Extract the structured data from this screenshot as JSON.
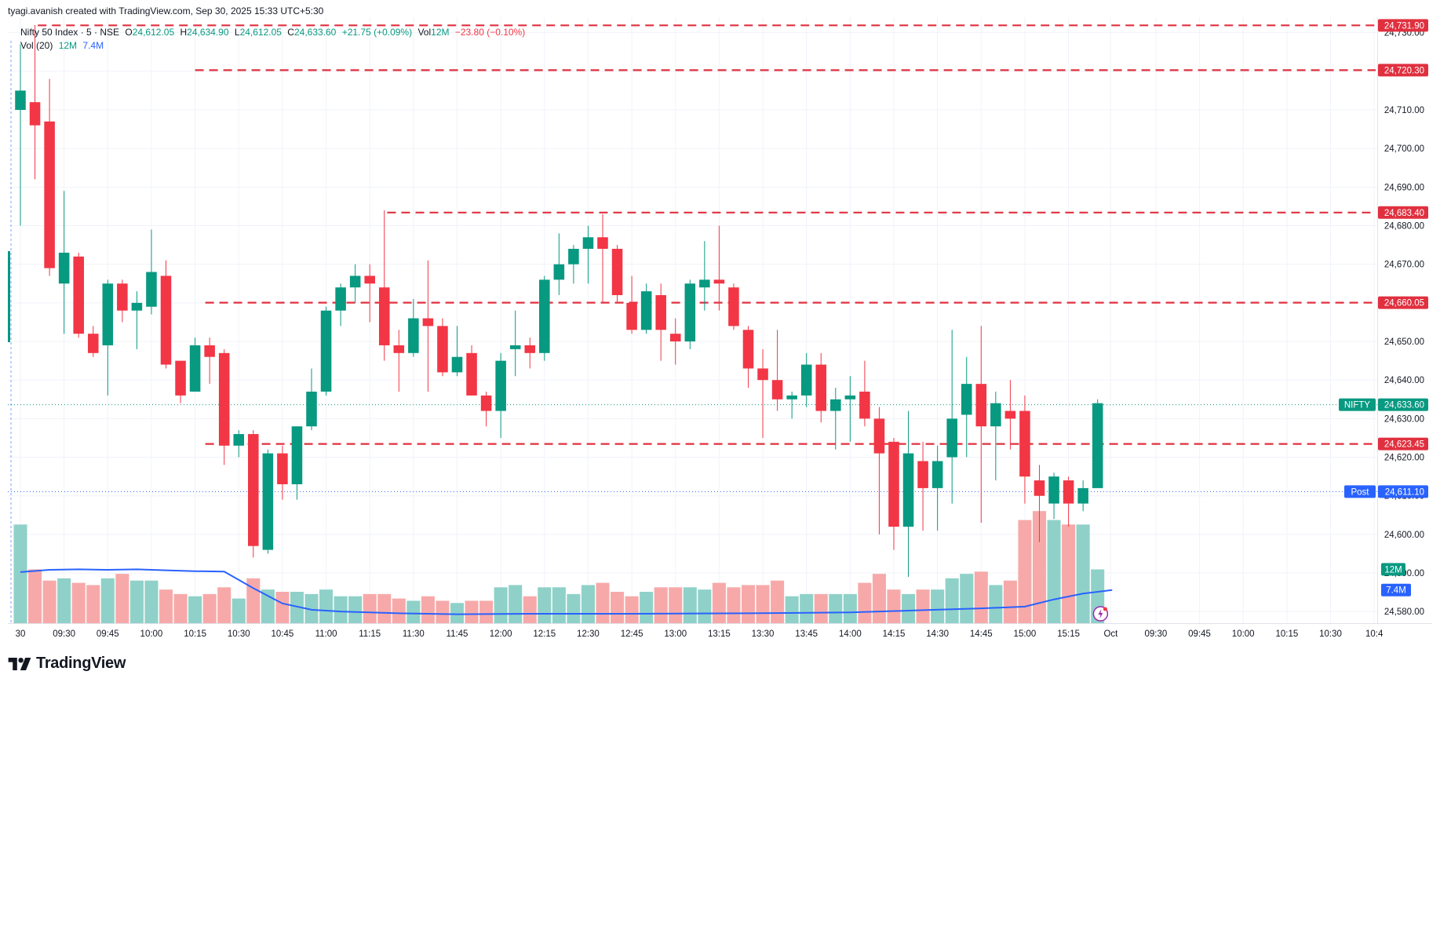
{
  "header": {
    "attribution": "tyagi.avanish created with TradingView.com, Sep 30, 2025 15:33 UTC+5:30"
  },
  "legend": {
    "symbol": "Nifty 50 Index · 5 · NSE",
    "open_key": "O",
    "open": "24,612.05",
    "high_key": "H",
    "high": "24,634.90",
    "low_key": "L",
    "low": "24,612.05",
    "close_key": "C",
    "close": "24,633.60",
    "change": "+21.75 (+0.09%)",
    "vol_key": "Vol",
    "vol": "12M",
    "vol_change": "−23.80 (−0.10%)",
    "vol_indicator": "Vol (20)",
    "vol_value": "12M",
    "vol_ma": "7.4M"
  },
  "logo": {
    "text": "TradingView"
  },
  "colors": {
    "up": "#089981",
    "down": "#f23645",
    "up_vol": "#8fd1c8",
    "down_vol": "#f7a9a9",
    "ma": "#2962ff",
    "level": "#e0303f",
    "grid": "#f0f3fa",
    "post": "#2962ff"
  },
  "chart_data": {
    "type": "candlestick",
    "title": "Nifty 50 Index · 5 · NSE",
    "price_axis": {
      "ylim": [
        24577,
        24734
      ],
      "ticks": [
        "24,580.00",
        "24,590.00",
        "24,600.00",
        "24,610.00",
        "24,620.00",
        "24,630.00",
        "24,640.00",
        "24,650.00",
        "24,660.00",
        "24,670.00",
        "24,680.00",
        "24,690.00",
        "24,700.00",
        "24,710.00",
        "24,720.00",
        "24,730.00"
      ],
      "tick_values": [
        24580,
        24590,
        24600,
        24610,
        24620,
        24630,
        24640,
        24650,
        24660,
        24670,
        24680,
        24690,
        24700,
        24710,
        24720,
        24730
      ]
    },
    "time_axis": {
      "labels": [
        "30",
        "09:30",
        "09:45",
        "10:00",
        "10:15",
        "10:30",
        "10:45",
        "11:00",
        "11:15",
        "11:30",
        "11:45",
        "12:00",
        "12:15",
        "12:30",
        "12:45",
        "13:00",
        "13:15",
        "13:30",
        "13:45",
        "14:00",
        "14:15",
        "14:30",
        "14:45",
        "15:00",
        "15:15",
        "Oct",
        "09:30",
        "09:45",
        "10:00",
        "10:15",
        "10:30",
        "10:4"
      ],
      "label_index": [
        0,
        3,
        6,
        9,
        12,
        15,
        18,
        21,
        24,
        27,
        30,
        33,
        36,
        39,
        42,
        45,
        48,
        51,
        54,
        57,
        60,
        63,
        66,
        69,
        72,
        74.9,
        78,
        81,
        84,
        87,
        90,
        93
      ]
    },
    "volume_axis": {
      "vmax": 28
    },
    "candles": [
      {
        "o": 24710,
        "h": 24727,
        "l": 24680,
        "c": 24715,
        "v": 22
      },
      {
        "o": 24712,
        "h": 24732,
        "l": 24692,
        "c": 24706,
        "v": 12
      },
      {
        "o": 24707,
        "h": 24718,
        "l": 24667,
        "c": 24669,
        "v": 9.5
      },
      {
        "o": 24665,
        "h": 24689,
        "l": 24652,
        "c": 24673,
        "v": 10
      },
      {
        "o": 24672,
        "h": 24673,
        "l": 24651,
        "c": 24652,
        "v": 9
      },
      {
        "o": 24652,
        "h": 24654,
        "l": 24646,
        "c": 24647,
        "v": 8.5
      },
      {
        "o": 24649,
        "h": 24666,
        "l": 24636,
        "c": 24665,
        "v": 10
      },
      {
        "o": 24665,
        "h": 24666,
        "l": 24655,
        "c": 24658,
        "v": 11
      },
      {
        "o": 24658,
        "h": 24663,
        "l": 24648,
        "c": 24660,
        "v": 9.5
      },
      {
        "o": 24659,
        "h": 24679,
        "l": 24657,
        "c": 24668,
        "v": 9.5
      },
      {
        "o": 24667,
        "h": 24671,
        "l": 24643,
        "c": 24644,
        "v": 7.5
      },
      {
        "o": 24645,
        "h": 24645,
        "l": 24634,
        "c": 24636,
        "v": 6.5
      },
      {
        "o": 24637,
        "h": 24651,
        "l": 24637,
        "c": 24649,
        "v": 6
      },
      {
        "o": 24649,
        "h": 24651,
        "l": 24639,
        "c": 24646,
        "v": 6.5
      },
      {
        "o": 24647,
        "h": 24648,
        "l": 24618,
        "c": 24623,
        "v": 8
      },
      {
        "o": 24623,
        "h": 24627,
        "l": 24620,
        "c": 24626,
        "v": 5.5
      },
      {
        "o": 24626,
        "h": 24627,
        "l": 24594,
        "c": 24597,
        "v": 10
      },
      {
        "o": 24596,
        "h": 24622,
        "l": 24595,
        "c": 24621,
        "v": 7.5
      },
      {
        "o": 24621,
        "h": 24623,
        "l": 24609,
        "c": 24613,
        "v": 7
      },
      {
        "o": 24613,
        "h": 24628,
        "l": 24609,
        "c": 24628,
        "v": 7
      },
      {
        "o": 24628,
        "h": 24643,
        "l": 24627,
        "c": 24637,
        "v": 6.5
      },
      {
        "o": 24637,
        "h": 24659,
        "l": 24636,
        "c": 24658,
        "v": 7.5
      },
      {
        "o": 24658,
        "h": 24665,
        "l": 24654,
        "c": 24664,
        "v": 6
      },
      {
        "o": 24664,
        "h": 24670,
        "l": 24660,
        "c": 24667,
        "v": 6
      },
      {
        "o": 24667,
        "h": 24670,
        "l": 24655,
        "c": 24665,
        "v": 6.5
      },
      {
        "o": 24664,
        "h": 24684,
        "l": 24645,
        "c": 24649,
        "v": 6.5
      },
      {
        "o": 24649,
        "h": 24653,
        "l": 24637,
        "c": 24647,
        "v": 5.5
      },
      {
        "o": 24647,
        "h": 24661,
        "l": 24646,
        "c": 24656,
        "v": 5
      },
      {
        "o": 24656,
        "h": 24671,
        "l": 24637,
        "c": 24654,
        "v": 6
      },
      {
        "o": 24654,
        "h": 24656,
        "l": 24641,
        "c": 24642,
        "v": 5
      },
      {
        "o": 24642,
        "h": 24654,
        "l": 24641,
        "c": 24646,
        "v": 4.5
      },
      {
        "o": 24647,
        "h": 24649,
        "l": 24636,
        "c": 24636,
        "v": 5
      },
      {
        "o": 24636,
        "h": 24637,
        "l": 24628,
        "c": 24632,
        "v": 5
      },
      {
        "o": 24632,
        "h": 24647,
        "l": 24625,
        "c": 24645,
        "v": 8
      },
      {
        "o": 24648,
        "h": 24658,
        "l": 24641,
        "c": 24649,
        "v": 8.5
      },
      {
        "o": 24649,
        "h": 24651,
        "l": 24643,
        "c": 24647,
        "v": 6
      },
      {
        "o": 24647,
        "h": 24667,
        "l": 24645,
        "c": 24666,
        "v": 8
      },
      {
        "o": 24666,
        "h": 24678,
        "l": 24662,
        "c": 24670,
        "v": 8
      },
      {
        "o": 24670,
        "h": 24675,
        "l": 24665,
        "c": 24674,
        "v": 6.5
      },
      {
        "o": 24674,
        "h": 24680,
        "l": 24665,
        "c": 24677,
        "v": 8.5
      },
      {
        "o": 24677,
        "h": 24683,
        "l": 24660,
        "c": 24674,
        "v": 9
      },
      {
        "o": 24674,
        "h": 24675,
        "l": 24660,
        "c": 24662,
        "v": 7
      },
      {
        "o": 24660,
        "h": 24667,
        "l": 24652,
        "c": 24653,
        "v": 6
      },
      {
        "o": 24653,
        "h": 24665,
        "l": 24652,
        "c": 24663,
        "v": 7
      },
      {
        "o": 24662,
        "h": 24665,
        "l": 24645,
        "c": 24653,
        "v": 8
      },
      {
        "o": 24652,
        "h": 24656,
        "l": 24644,
        "c": 24650,
        "v": 8
      },
      {
        "o": 24650,
        "h": 24666,
        "l": 24648,
        "c": 24665,
        "v": 8
      },
      {
        "o": 24664,
        "h": 24676,
        "l": 24658,
        "c": 24666,
        "v": 7.5
      },
      {
        "o": 24666,
        "h": 24680,
        "l": 24658,
        "c": 24665,
        "v": 9
      },
      {
        "o": 24664,
        "h": 24665,
        "l": 24653,
        "c": 24654,
        "v": 8
      },
      {
        "o": 24653,
        "h": 24654,
        "l": 24638,
        "c": 24643,
        "v": 8.5
      },
      {
        "o": 24643,
        "h": 24648,
        "l": 24625,
        "c": 24640,
        "v": 8.5
      },
      {
        "o": 24640,
        "h": 24653,
        "l": 24632,
        "c": 24635,
        "v": 9.5
      },
      {
        "o": 24635,
        "h": 24637,
        "l": 24630,
        "c": 24636,
        "v": 6
      },
      {
        "o": 24636,
        "h": 24647,
        "l": 24633,
        "c": 24644,
        "v": 6.5
      },
      {
        "o": 24644,
        "h": 24647,
        "l": 24629,
        "c": 24632,
        "v": 6.5
      },
      {
        "o": 24632,
        "h": 24638,
        "l": 24622,
        "c": 24635,
        "v": 6.5
      },
      {
        "o": 24635,
        "h": 24641,
        "l": 24624,
        "c": 24636,
        "v": 6.5
      },
      {
        "o": 24637,
        "h": 24645,
        "l": 24628,
        "c": 24630,
        "v": 9
      },
      {
        "o": 24630,
        "h": 24633,
        "l": 24600,
        "c": 24621,
        "v": 11
      },
      {
        "o": 24624,
        "h": 24625,
        "l": 24596,
        "c": 24602,
        "v": 7.5
      },
      {
        "o": 24602,
        "h": 24632,
        "l": 24589,
        "c": 24621,
        "v": 6.5
      },
      {
        "o": 24619,
        "h": 24624,
        "l": 24601,
        "c": 24612,
        "v": 7.5
      },
      {
        "o": 24612,
        "h": 24623,
        "l": 24601,
        "c": 24619,
        "v": 7.5
      },
      {
        "o": 24620,
        "h": 24653,
        "l": 24608,
        "c": 24630,
        "v": 10
      },
      {
        "o": 24631,
        "h": 24646,
        "l": 24620,
        "c": 24639,
        "v": 11
      },
      {
        "o": 24639,
        "h": 24654,
        "l": 24603,
        "c": 24628,
        "v": 11.5
      },
      {
        "o": 24628,
        "h": 24637,
        "l": 24614,
        "c": 24634,
        "v": 8.5
      },
      {
        "o": 24632,
        "h": 24640,
        "l": 24622,
        "c": 24630,
        "v": 9.5
      },
      {
        "o": 24632,
        "h": 24636,
        "l": 24608,
        "c": 24615,
        "v": 23
      },
      {
        "o": 24614,
        "h": 24618,
        "l": 24598,
        "c": 24610,
        "v": 25
      },
      {
        "o": 24608,
        "h": 24616,
        "l": 24604,
        "c": 24615,
        "v": 23
      },
      {
        "o": 24614,
        "h": 24615,
        "l": 24602,
        "c": 24608,
        "v": 22
      },
      {
        "o": 24608,
        "h": 24614,
        "l": 24606,
        "c": 24612,
        "v": 22
      },
      {
        "o": 24612,
        "h": 24635,
        "l": 24612,
        "c": 24634,
        "v": 12
      }
    ],
    "volume_ma": [
      {
        "i": 0,
        "v": 11.4
      },
      {
        "i": 2,
        "v": 11.9
      },
      {
        "i": 4,
        "v": 12.0
      },
      {
        "i": 6,
        "v": 11.9
      },
      {
        "i": 8,
        "v": 12.0
      },
      {
        "i": 10,
        "v": 11.8
      },
      {
        "i": 12,
        "v": 11.6
      },
      {
        "i": 14,
        "v": 11.5
      },
      {
        "i": 16,
        "v": 7.8
      },
      {
        "i": 18,
        "v": 4.4
      },
      {
        "i": 20,
        "v": 3.0
      },
      {
        "i": 22,
        "v": 2.6
      },
      {
        "i": 26,
        "v": 2.2
      },
      {
        "i": 30,
        "v": 2.0
      },
      {
        "i": 35,
        "v": 2.1
      },
      {
        "i": 42,
        "v": 2.1
      },
      {
        "i": 50,
        "v": 2.2
      },
      {
        "i": 57,
        "v": 2.4
      },
      {
        "i": 62,
        "v": 2.9
      },
      {
        "i": 66,
        "v": 3.3
      },
      {
        "i": 69,
        "v": 3.7
      },
      {
        "i": 71,
        "v": 5.3
      },
      {
        "i": 73,
        "v": 6.6
      },
      {
        "i": 75,
        "v": 7.4
      }
    ],
    "levels": [
      {
        "price": 24731.9,
        "label": "24,731.90",
        "from_index": 1.2
      },
      {
        "price": 24720.3,
        "label": "24,720.30",
        "from_index": 12
      },
      {
        "price": 24683.4,
        "label": "24,683.40",
        "from_index": 25.2
      },
      {
        "price": 24660.05,
        "label": "24,660.05",
        "from_index": 12.7
      },
      {
        "price": 24623.45,
        "label": "24,623.45",
        "from_index": 12.7
      }
    ],
    "price_tags": [
      {
        "name": "NIFTY",
        "price": 24633.6,
        "label": "24,633.60",
        "color": "#089981"
      },
      {
        "name": "Post",
        "price": 24611.1,
        "label": "24,611.10",
        "color": "#2962ff"
      }
    ],
    "volume_tags": [
      {
        "label": "12M",
        "value": 12,
        "color": "#089981"
      },
      {
        "label": "7.4M",
        "value": 7.4,
        "color": "#2962ff"
      }
    ]
  }
}
